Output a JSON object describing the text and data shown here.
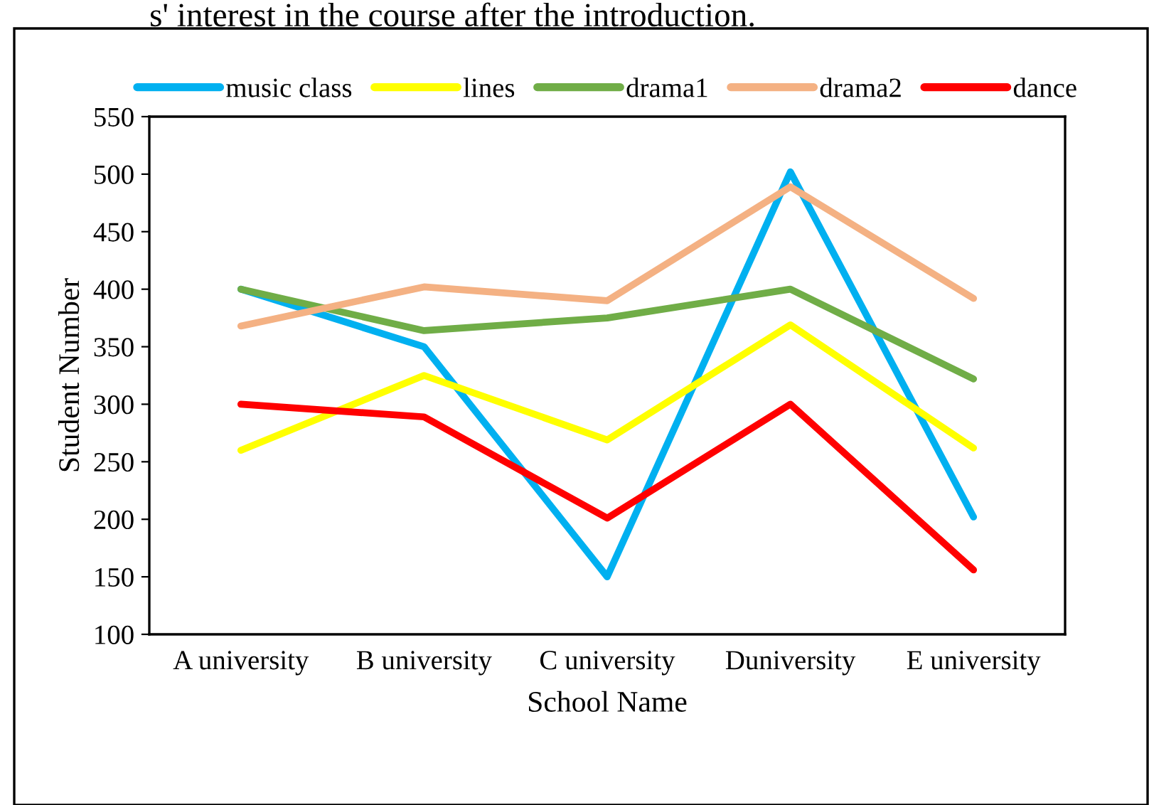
{
  "chart_data": {
    "type": "line",
    "annotations": [
      "s' interest in the course after the introduction."
    ],
    "xlabel": "School Name",
    "ylabel": "Student Number",
    "categories": [
      "A university",
      "B university",
      "C university",
      "Duniversity",
      "E university"
    ],
    "series": [
      {
        "name": "music class",
        "color": "#00b0f0",
        "values": [
          400,
          350,
          150,
          502,
          202
        ]
      },
      {
        "name": "lines",
        "color": "#ffff00",
        "values": [
          260,
          325,
          269,
          369,
          262
        ]
      },
      {
        "name": "drama1",
        "color": "#70ad47",
        "values": [
          400,
          364,
          375,
          400,
          322
        ]
      },
      {
        "name": "drama2",
        "color": "#f4b183",
        "values": [
          368,
          402,
          390,
          489,
          392
        ]
      },
      {
        "name": "dance",
        "color": "#ff0000",
        "values": [
          300,
          289,
          201,
          300,
          156
        ]
      }
    ],
    "ylim": [
      100,
      550
    ],
    "yticks": [
      100,
      150,
      200,
      250,
      300,
      350,
      400,
      450,
      500,
      550
    ],
    "grid": false,
    "legend": "top",
    "marker": "none",
    "line_style": "solid"
  }
}
